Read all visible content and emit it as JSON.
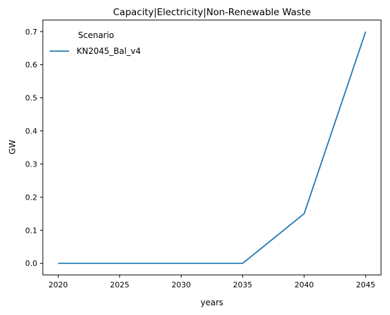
{
  "chart_data": {
    "type": "line",
    "title": "Capacity|Electricity|Non-Renewable Waste",
    "xlabel": "years",
    "ylabel": "GW",
    "x": [
      2020,
      2025,
      2030,
      2035,
      2040,
      2045
    ],
    "series": [
      {
        "name": "KN2045_Bal_v4",
        "values": [
          0.0,
          0.0,
          0.0,
          0.0,
          0.15,
          0.7
        ],
        "color": "#1f77b4"
      }
    ],
    "xlim": [
      2018.75,
      2046.25
    ],
    "ylim": [
      -0.035,
      0.735
    ],
    "xticks": [
      2020,
      2025,
      2030,
      2035,
      2040,
      2045
    ],
    "yticks": [
      "0.0",
      "0.1",
      "0.2",
      "0.3",
      "0.4",
      "0.5",
      "0.6",
      "0.7"
    ],
    "grid": false,
    "legend": {
      "title": "Scenario",
      "placement": "upper-left"
    }
  }
}
